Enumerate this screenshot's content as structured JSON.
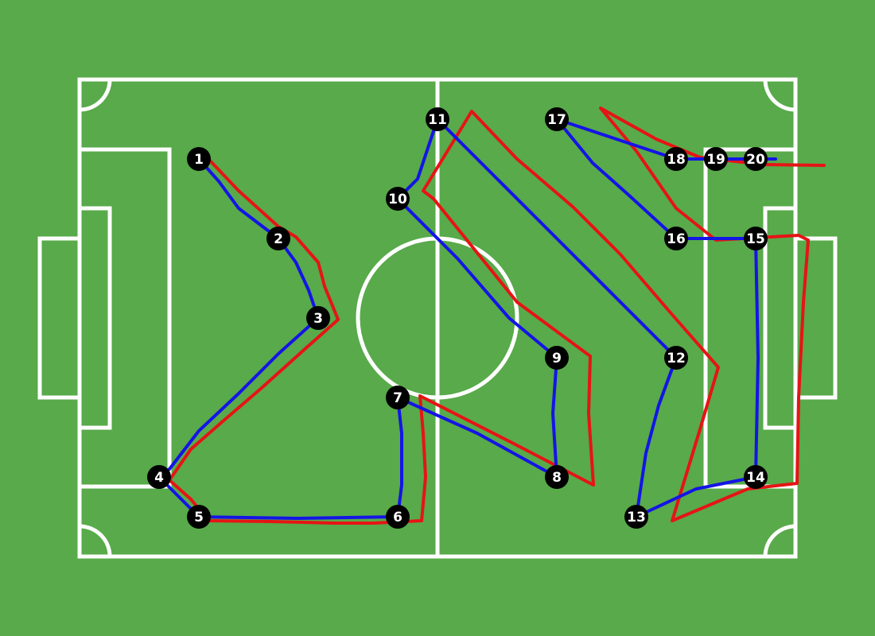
{
  "colors": {
    "grass": "#58aa4a",
    "field_lines": "#ffffff",
    "node_fill": "#000000",
    "node_text": "#ffffff",
    "blue_path": "#1414e6",
    "red_path": "#e61414"
  },
  "nodes": [
    {
      "id": 1,
      "label": "1"
    },
    {
      "id": 2,
      "label": "2"
    },
    {
      "id": 3,
      "label": "3"
    },
    {
      "id": 4,
      "label": "4"
    },
    {
      "id": 5,
      "label": "5"
    },
    {
      "id": 6,
      "label": "6"
    },
    {
      "id": 7,
      "label": "7"
    },
    {
      "id": 8,
      "label": "8"
    },
    {
      "id": 9,
      "label": "9"
    },
    {
      "id": 10,
      "label": "10"
    },
    {
      "id": 11,
      "label": "11"
    },
    {
      "id": 12,
      "label": "12"
    },
    {
      "id": 13,
      "label": "13"
    },
    {
      "id": 14,
      "label": "14"
    },
    {
      "id": 15,
      "label": "15"
    },
    {
      "id": 16,
      "label": "16"
    },
    {
      "id": 17,
      "label": "17"
    },
    {
      "id": 18,
      "label": "18"
    },
    {
      "id": 19,
      "label": "19"
    },
    {
      "id": 20,
      "label": "20"
    }
  ],
  "blue_path_sequence": [
    1,
    2,
    3,
    4,
    5,
    6,
    7,
    8,
    9,
    10,
    11,
    12,
    13,
    14,
    15,
    16,
    17,
    18,
    19,
    20
  ]
}
